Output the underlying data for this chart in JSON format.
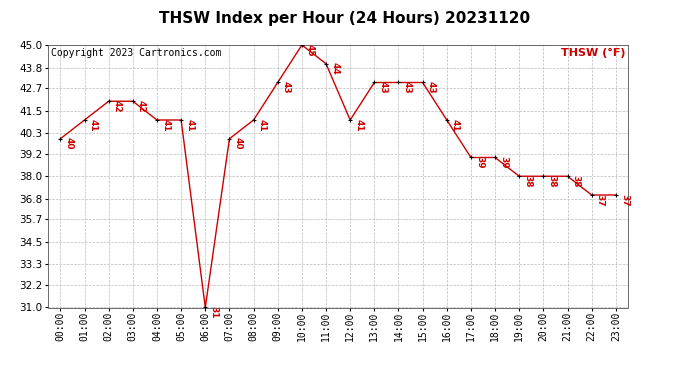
{
  "title": "THSW Index per Hour (24 Hours) 20231120",
  "copyright": "Copyright 2023 Cartronics.com",
  "legend_label": "THSW (°F)",
  "hours": [
    "00:00",
    "01:00",
    "02:00",
    "03:00",
    "04:00",
    "05:00",
    "06:00",
    "07:00",
    "08:00",
    "09:00",
    "10:00",
    "11:00",
    "12:00",
    "13:00",
    "14:00",
    "15:00",
    "16:00",
    "17:00",
    "18:00",
    "19:00",
    "20:00",
    "21:00",
    "22:00",
    "23:00"
  ],
  "values": [
    40,
    41,
    42,
    42,
    41,
    41,
    31,
    40,
    41,
    43,
    45,
    44,
    41,
    43,
    43,
    43,
    41,
    39,
    39,
    38,
    38,
    38,
    37,
    37
  ],
  "line_color": "#cc0000",
  "marker_color": "#000000",
  "label_color": "#cc0000",
  "bg_color": "#ffffff",
  "grid_color": "#bbbbbb",
  "ylim_min": 31.0,
  "ylim_max": 45.0,
  "yticks": [
    31.0,
    32.2,
    33.3,
    34.5,
    35.7,
    36.8,
    38.0,
    39.2,
    40.3,
    41.5,
    42.7,
    43.8,
    45.0
  ],
  "title_fontsize": 11,
  "copyright_fontsize": 7,
  "legend_fontsize": 8,
  "label_fontsize": 6.5,
  "tick_fontsize": 7,
  "ytick_fontsize": 7.5
}
